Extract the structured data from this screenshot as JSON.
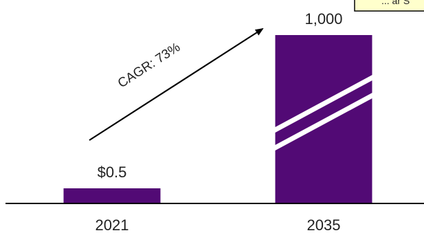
{
  "chart_data": {
    "type": "bar",
    "categories": [
      "2021",
      "2035"
    ],
    "values": [
      0.5,
      1000
    ],
    "data_labels": [
      "$0.5",
      "1,000"
    ],
    "axis_break": {
      "category": "2035"
    },
    "annotation": "CAGR: 73%",
    "callout_text": "... ar S",
    "title": "",
    "xlabel": "",
    "ylabel": "",
    "grid": false,
    "legend": "none"
  },
  "colors": {
    "bar": "#520A75",
    "callout_fill": "#FFFFCC",
    "break_stripe": "#FFFFFF",
    "axis": "#000000",
    "text": "#222222"
  }
}
